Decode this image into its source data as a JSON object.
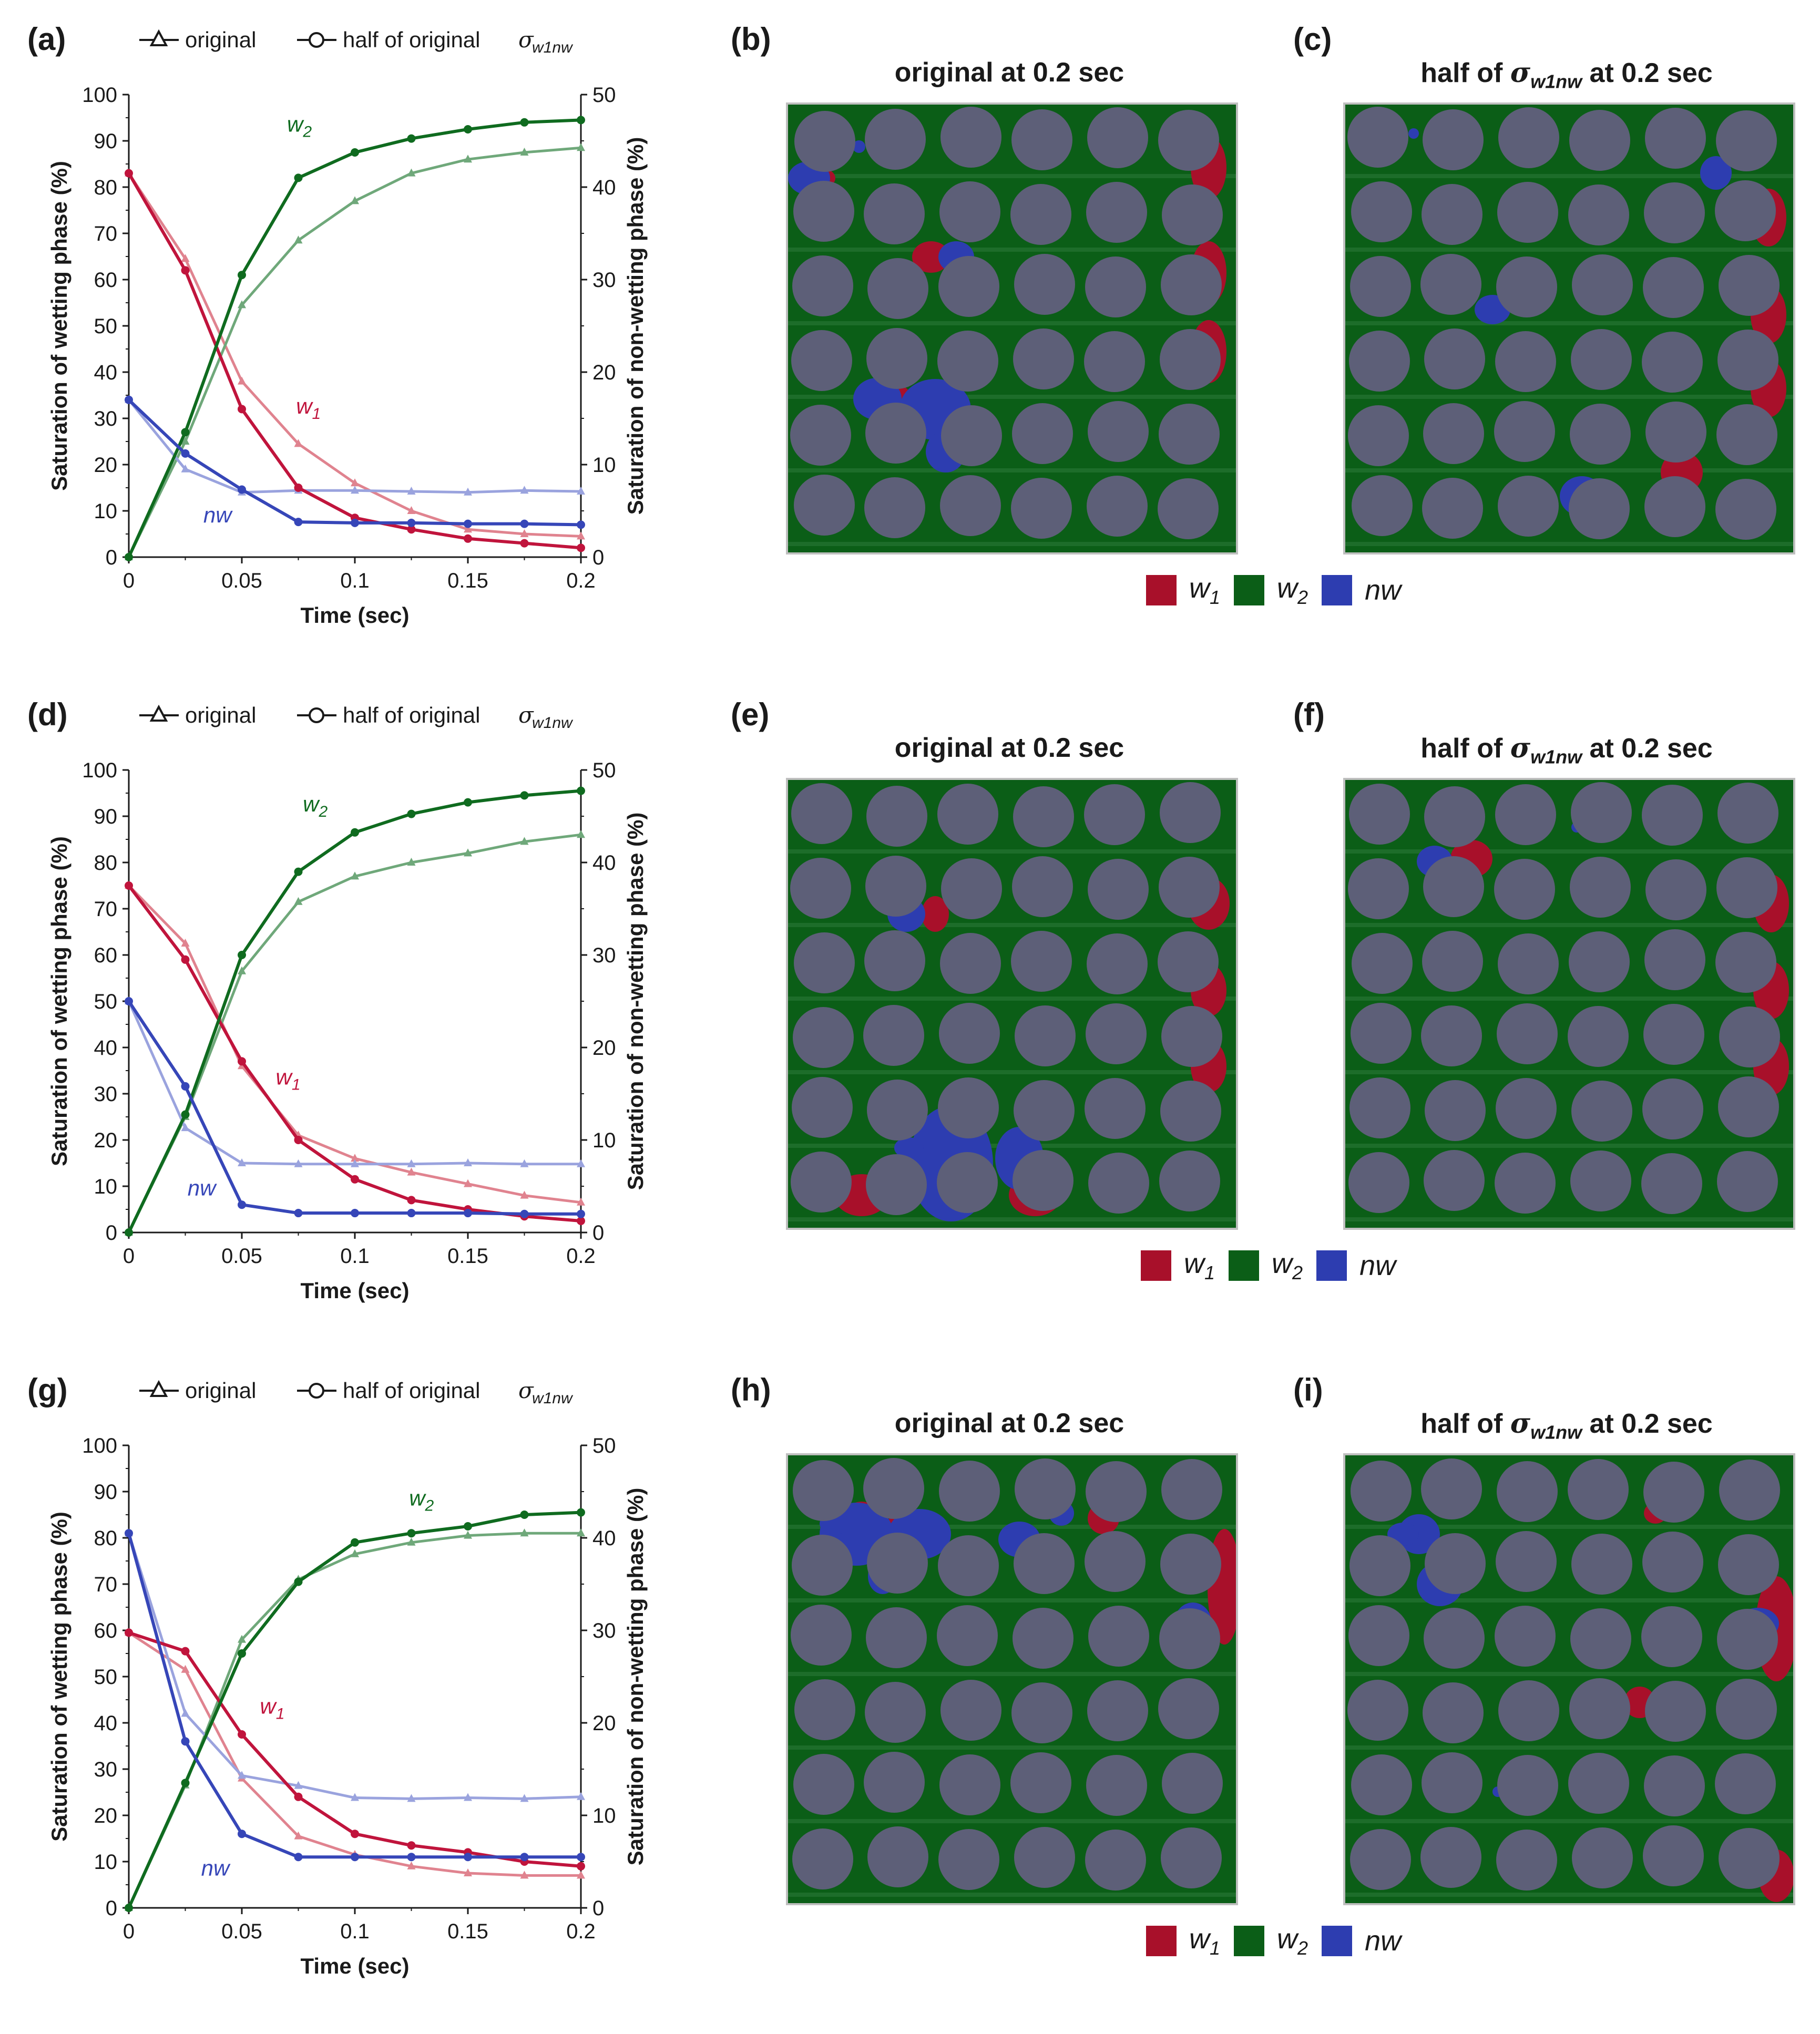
{
  "panel_letters": {
    "a": "(a)",
    "b": "(b)",
    "c": "(c)",
    "d": "(d)",
    "e": "(e)",
    "f": "(f)",
    "g": "(g)",
    "h": "(h)",
    "i": "(i)"
  },
  "colors": {
    "w1": "#c0143c",
    "w1_light": "#e0838f",
    "w2": "#0f6b1f",
    "w2_light": "#6fa87a",
    "nw": "#3646b8",
    "nw_light": "#9aa3de",
    "snap_bg": "#0b5e17",
    "grain": "#5d5f78",
    "red_phase": "#a8102a",
    "blue_phase": "#2d3db0"
  },
  "legend": {
    "original": "original",
    "half_prefix": "half of original ",
    "sigma": "σ",
    "sigma_sub": "w1nw"
  },
  "snapshots": {
    "original_title": "original at 0.2 sec",
    "half_title_prefix": "half of ",
    "half_title_sigma": "σ",
    "half_title_sub": "w1nw",
    "half_title_suffix": " at 0.2 sec"
  },
  "phase_legend": {
    "w1": "w",
    "w1_sub": "1",
    "w2": "w",
    "w2_sub": "2",
    "nw": "nw"
  },
  "chart_data": [
    {
      "type": "line",
      "panel": "a",
      "xlabel": "Time (sec)",
      "ylabel": "Saturation of wetting phase (%)",
      "ylabel_right": "Saturation of non-wetting phase (%)",
      "x": [
        0,
        0.025,
        0.05,
        0.075,
        0.1,
        0.125,
        0.15,
        0.175,
        0.2
      ],
      "xticks": [
        "0",
        "0.05",
        "0.1",
        "0.15",
        "0.2"
      ],
      "xlim": [
        0,
        0.2
      ],
      "ylim": [
        0,
        100
      ],
      "ylim_right": [
        0,
        50
      ],
      "yticks": [
        "0",
        "10",
        "20",
        "30",
        "40",
        "50",
        "60",
        "70",
        "80",
        "90",
        "100"
      ],
      "yticks_right": [
        "0",
        "10",
        "20",
        "30",
        "40",
        "50"
      ],
      "series": [
        {
          "name": "w1 original",
          "phase": "w1",
          "marker": "triangle",
          "axis": "left",
          "values": [
            83,
            64.5,
            38,
            24.5,
            16,
            10,
            6,
            5,
            4.5
          ]
        },
        {
          "name": "w1 half of original σw1nw",
          "phase": "w1",
          "marker": "circle",
          "axis": "left",
          "values": [
            83,
            62,
            32,
            15,
            8.5,
            6,
            4,
            3,
            2
          ]
        },
        {
          "name": "w2 original",
          "phase": "w2",
          "marker": "triangle",
          "axis": "left",
          "values": [
            0,
            25,
            54.5,
            68.5,
            77,
            83,
            86,
            87.5,
            88.5
          ]
        },
        {
          "name": "w2 half of original σw1nw",
          "phase": "w2",
          "marker": "circle",
          "axis": "left",
          "values": [
            0,
            27,
            61,
            82,
            87.5,
            90.5,
            92.5,
            94,
            94.5
          ]
        },
        {
          "name": "nw original",
          "phase": "nw",
          "marker": "triangle",
          "axis": "right",
          "values": [
            17,
            9.5,
            7,
            7.2,
            7.2,
            7.1,
            7,
            7.2,
            7.1
          ]
        },
        {
          "name": "nw half of original σw1nw",
          "phase": "nw",
          "marker": "circle",
          "axis": "right",
          "values": [
            17,
            11.2,
            7.3,
            3.8,
            3.7,
            3.7,
            3.6,
            3.6,
            3.5
          ]
        }
      ],
      "annotations": [
        {
          "label": "w",
          "sub": "2",
          "phase": "w2",
          "at": [
            0.07,
            92
          ]
        },
        {
          "label": "w",
          "sub": "1",
          "phase": "w1",
          "at": [
            0.074,
            31
          ]
        },
        {
          "label": "nw",
          "sub": "",
          "phase": "nw",
          "at": [
            0.033,
            7.5
          ]
        }
      ]
    },
    {
      "type": "line",
      "panel": "d",
      "xlabel": "Time (sec)",
      "ylabel": "Saturation of wetting phase (%)",
      "ylabel_right": "Saturation of non-wetting phase (%)",
      "x": [
        0,
        0.025,
        0.05,
        0.075,
        0.1,
        0.125,
        0.15,
        0.175,
        0.2
      ],
      "xticks": [
        "0",
        "0.05",
        "0.1",
        "0.15",
        "0.2"
      ],
      "xlim": [
        0,
        0.2
      ],
      "ylim": [
        0,
        100
      ],
      "ylim_right": [
        0,
        50
      ],
      "yticks": [
        "0",
        "10",
        "20",
        "30",
        "40",
        "50",
        "60",
        "70",
        "80",
        "90",
        "100"
      ],
      "yticks_right": [
        "0",
        "10",
        "20",
        "30",
        "40",
        "50"
      ],
      "series": [
        {
          "name": "w1 original",
          "phase": "w1",
          "marker": "triangle",
          "axis": "left",
          "values": [
            75,
            62.5,
            36,
            21,
            16,
            13,
            10.5,
            8,
            6.5
          ]
        },
        {
          "name": "w1 half of original σw1nw",
          "phase": "w1",
          "marker": "circle",
          "axis": "left",
          "values": [
            75,
            59,
            37,
            20,
            11.5,
            7,
            5,
            3.5,
            2.5
          ]
        },
        {
          "name": "w2 original",
          "phase": "w2",
          "marker": "triangle",
          "axis": "left",
          "values": [
            0,
            25,
            56.5,
            71.5,
            77,
            80,
            82,
            84.5,
            86
          ]
        },
        {
          "name": "w2 half of original σw1nw",
          "phase": "w2",
          "marker": "circle",
          "axis": "left",
          "values": [
            0,
            25.5,
            60,
            78,
            86.5,
            90.5,
            93,
            94.5,
            95.5
          ]
        },
        {
          "name": "nw original",
          "phase": "nw",
          "marker": "triangle",
          "axis": "right",
          "values": [
            25,
            11.3,
            7.5,
            7.4,
            7.4,
            7.4,
            7.5,
            7.4,
            7.4
          ]
        },
        {
          "name": "nw half of original σw1nw",
          "phase": "nw",
          "marker": "circle",
          "axis": "right",
          "values": [
            25,
            15.8,
            3,
            2.1,
            2.1,
            2.1,
            2.1,
            2,
            2
          ]
        }
      ],
      "annotations": [
        {
          "label": "w",
          "sub": "2",
          "phase": "w2",
          "at": [
            0.077,
            91
          ]
        },
        {
          "label": "w",
          "sub": "1",
          "phase": "w1",
          "at": [
            0.065,
            32
          ]
        },
        {
          "label": "nw",
          "sub": "",
          "phase": "nw",
          "at": [
            0.026,
            8
          ]
        }
      ]
    },
    {
      "type": "line",
      "panel": "g",
      "xlabel": "Time (sec)",
      "ylabel": "Saturation of wetting phase (%)",
      "ylabel_right": "Saturation of non-wetting phase (%)",
      "x": [
        0,
        0.025,
        0.05,
        0.075,
        0.1,
        0.125,
        0.15,
        0.175,
        0.2
      ],
      "xticks": [
        "0",
        "0.05",
        "0.1",
        "0.15",
        "0.2"
      ],
      "xlim": [
        0,
        0.2
      ],
      "ylim": [
        0,
        100
      ],
      "ylim_right": [
        0,
        50
      ],
      "yticks": [
        "0",
        "10",
        "20",
        "30",
        "40",
        "50",
        "60",
        "70",
        "80",
        "90",
        "100"
      ],
      "yticks_right": [
        "0",
        "10",
        "20",
        "30",
        "40",
        "50"
      ],
      "series": [
        {
          "name": "w1 original",
          "phase": "w1",
          "marker": "triangle",
          "axis": "left",
          "values": [
            59.5,
            51.5,
            28,
            15.5,
            11.5,
            9,
            7.5,
            7,
            7
          ]
        },
        {
          "name": "w1 half of original σw1nw",
          "phase": "w1",
          "marker": "circle",
          "axis": "left",
          "values": [
            59.5,
            55.5,
            37.5,
            24,
            16,
            13.5,
            12,
            10,
            9
          ]
        },
        {
          "name": "w2 original",
          "phase": "w2",
          "marker": "triangle",
          "axis": "left",
          "values": [
            0,
            26.5,
            58,
            71,
            76.5,
            79,
            80.5,
            81,
            81
          ]
        },
        {
          "name": "w2 half of original σw1nw",
          "phase": "w2",
          "marker": "circle",
          "axis": "left",
          "values": [
            0,
            27,
            55,
            70.5,
            79,
            81,
            82.5,
            85,
            85.5
          ]
        },
        {
          "name": "nw original",
          "phase": "nw",
          "marker": "triangle",
          "axis": "right",
          "values": [
            40.5,
            21,
            14.3,
            13.2,
            11.9,
            11.8,
            11.9,
            11.8,
            12
          ]
        },
        {
          "name": "nw half of original σw1nw",
          "phase": "nw",
          "marker": "circle",
          "axis": "right",
          "values": [
            40.5,
            18,
            8,
            5.5,
            5.5,
            5.5,
            5.5,
            5.5,
            5.5
          ]
        }
      ],
      "annotations": [
        {
          "label": "w",
          "sub": "2",
          "phase": "w2",
          "at": [
            0.124,
            87
          ]
        },
        {
          "label": "w",
          "sub": "1",
          "phase": "w1",
          "at": [
            0.058,
            42
          ]
        },
        {
          "label": "nw",
          "sub": "",
          "phase": "nw",
          "at": [
            0.032,
            7
          ]
        }
      ]
    }
  ]
}
